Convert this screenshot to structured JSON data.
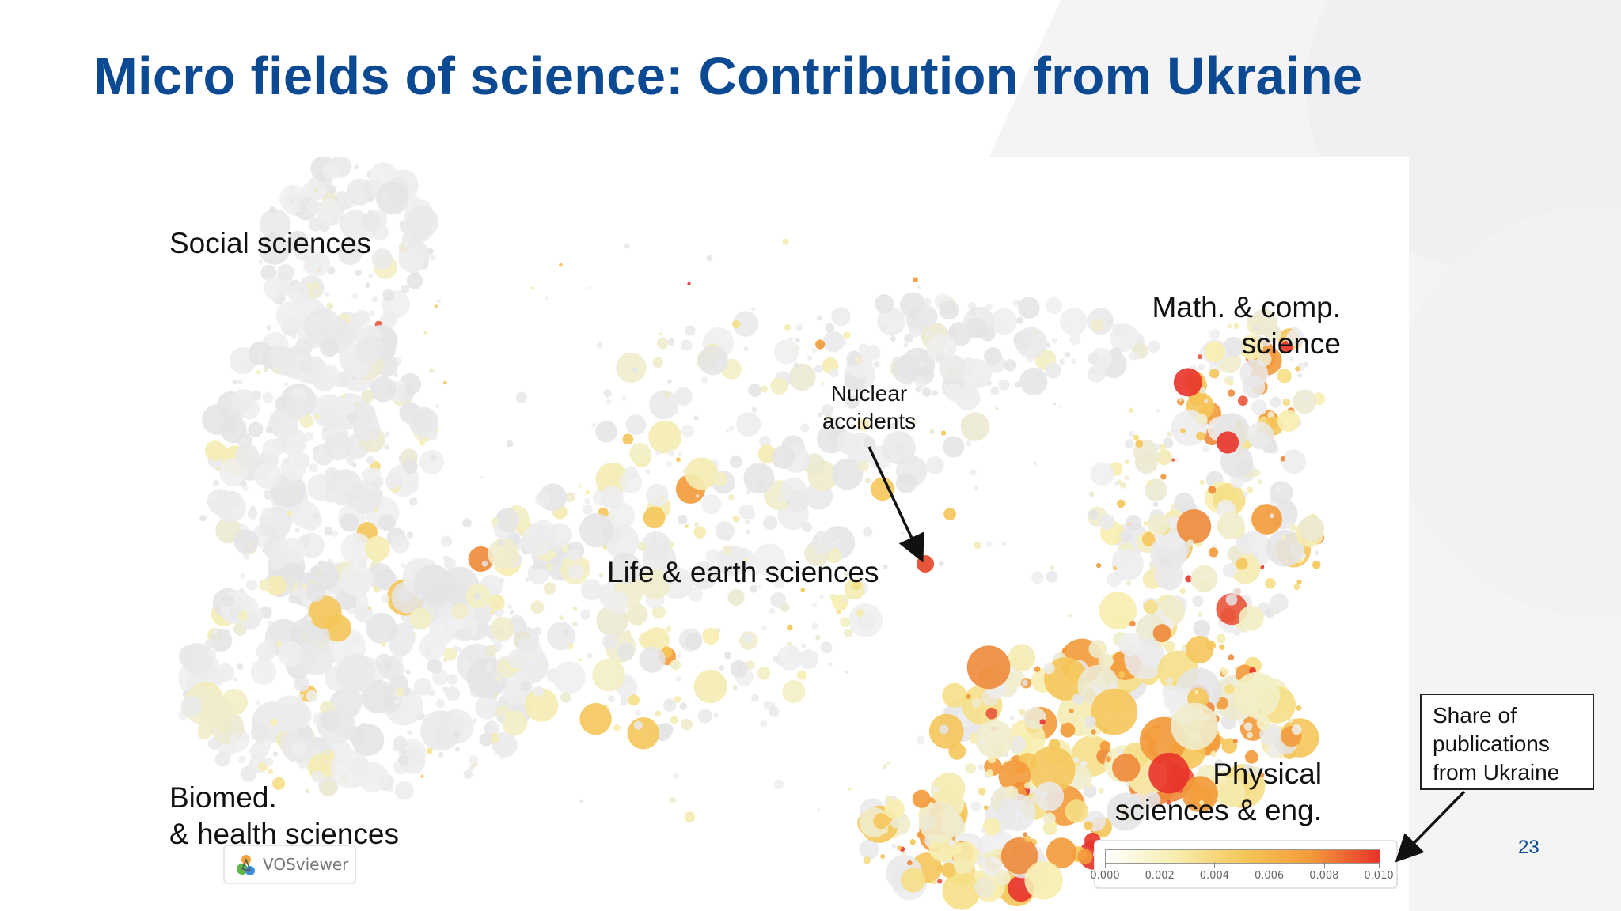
{
  "slide": {
    "title": "Micro fields of science: Contribution from Ukraine",
    "page_number": "23"
  },
  "colors": {
    "title": "#0b4a93",
    "low": "#f0f0f0",
    "mid_low": "#f7eeb0",
    "mid": "#f5c75a",
    "mid_high": "#f39a3a",
    "high": "#e8332a"
  },
  "chart_data": {
    "type": "scatter",
    "subtype": "VOSviewer bubble map",
    "title": "Micro fields of science: Contribution from Ukraine",
    "regions": [
      {
        "name": "Social sciences"
      },
      {
        "name": "Math. & comp. science",
        "lines": [
          "Math. & comp.",
          "science"
        ]
      },
      {
        "name": "Life & earth sciences"
      },
      {
        "name": "Biomed. & health sciences",
        "lines": [
          "Biomed.",
          "& health sciences"
        ]
      },
      {
        "name": "Physical sciences & eng.",
        "lines": [
          "Physical",
          "sciences & eng."
        ]
      }
    ],
    "annotations": [
      {
        "label": "Nuclear accidents",
        "lines": [
          "Nuclear",
          "accidents"
        ]
      }
    ],
    "color_scale": {
      "label": "Share of publications from Ukraine",
      "label_lines": [
        "Share of",
        "publications",
        "from Ukraine"
      ],
      "range": [
        0.0,
        0.01
      ],
      "ticks": [
        "0.000",
        "0.002",
        "0.004",
        "0.006",
        "0.008",
        "0.010"
      ]
    },
    "software": "VOSviewer"
  }
}
